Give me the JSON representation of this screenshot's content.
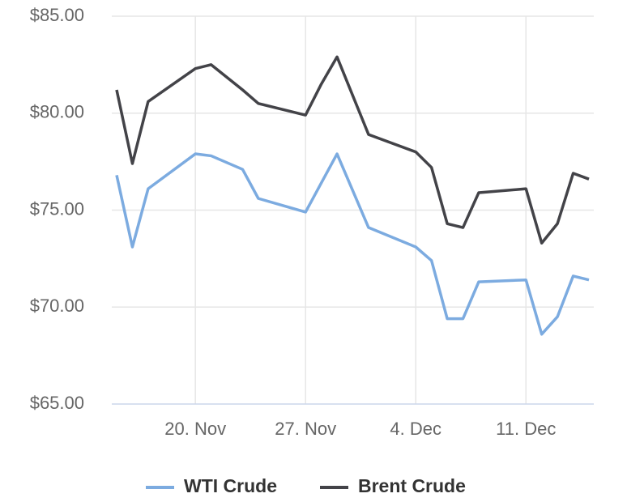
{
  "chart_data": {
    "type": "line",
    "x": [
      "15. Nov",
      "16. Nov",
      "17. Nov",
      "20. Nov",
      "21. Nov",
      "23. Nov",
      "24. Nov",
      "27. Nov",
      "28. Nov",
      "29. Nov",
      "1. Dec",
      "4. Dec",
      "5. Dec",
      "6. Dec",
      "7. Dec",
      "8. Dec",
      "11. Dec",
      "12. Dec",
      "13. Dec",
      "14. Dec",
      "15. Dec"
    ],
    "series": [
      {
        "name": "WTI Crude",
        "color": "#7cabe0",
        "values": [
          76.8,
          73.1,
          76.1,
          77.9,
          77.8,
          77.1,
          75.6,
          74.9,
          76.4,
          77.9,
          74.1,
          73.1,
          72.4,
          69.4,
          69.4,
          71.3,
          71.4,
          68.6,
          69.5,
          71.6,
          71.4
        ]
      },
      {
        "name": "Brent Crude",
        "color": "#434348",
        "values": [
          81.2,
          77.4,
          80.6,
          82.3,
          82.5,
          81.2,
          80.5,
          79.9,
          81.5,
          82.9,
          78.9,
          78.0,
          77.2,
          74.3,
          74.1,
          75.9,
          76.1,
          73.3,
          74.3,
          76.9,
          76.6
        ]
      }
    ],
    "xlim": [
      "15. Nov",
      "15. Dec"
    ],
    "xticks": [
      "20. Nov",
      "27. Nov",
      "4. Dec",
      "11. Dec"
    ],
    "ylim": [
      65,
      85
    ],
    "yticks": [
      {
        "value": 65,
        "label": "$65.00"
      },
      {
        "value": 70,
        "label": "$70.00"
      },
      {
        "value": 75,
        "label": "$75.00"
      },
      {
        "value": 80,
        "label": "$80.00"
      },
      {
        "value": 85,
        "label": "$85.00"
      }
    ],
    "grid": true,
    "legend": "bottom"
  }
}
